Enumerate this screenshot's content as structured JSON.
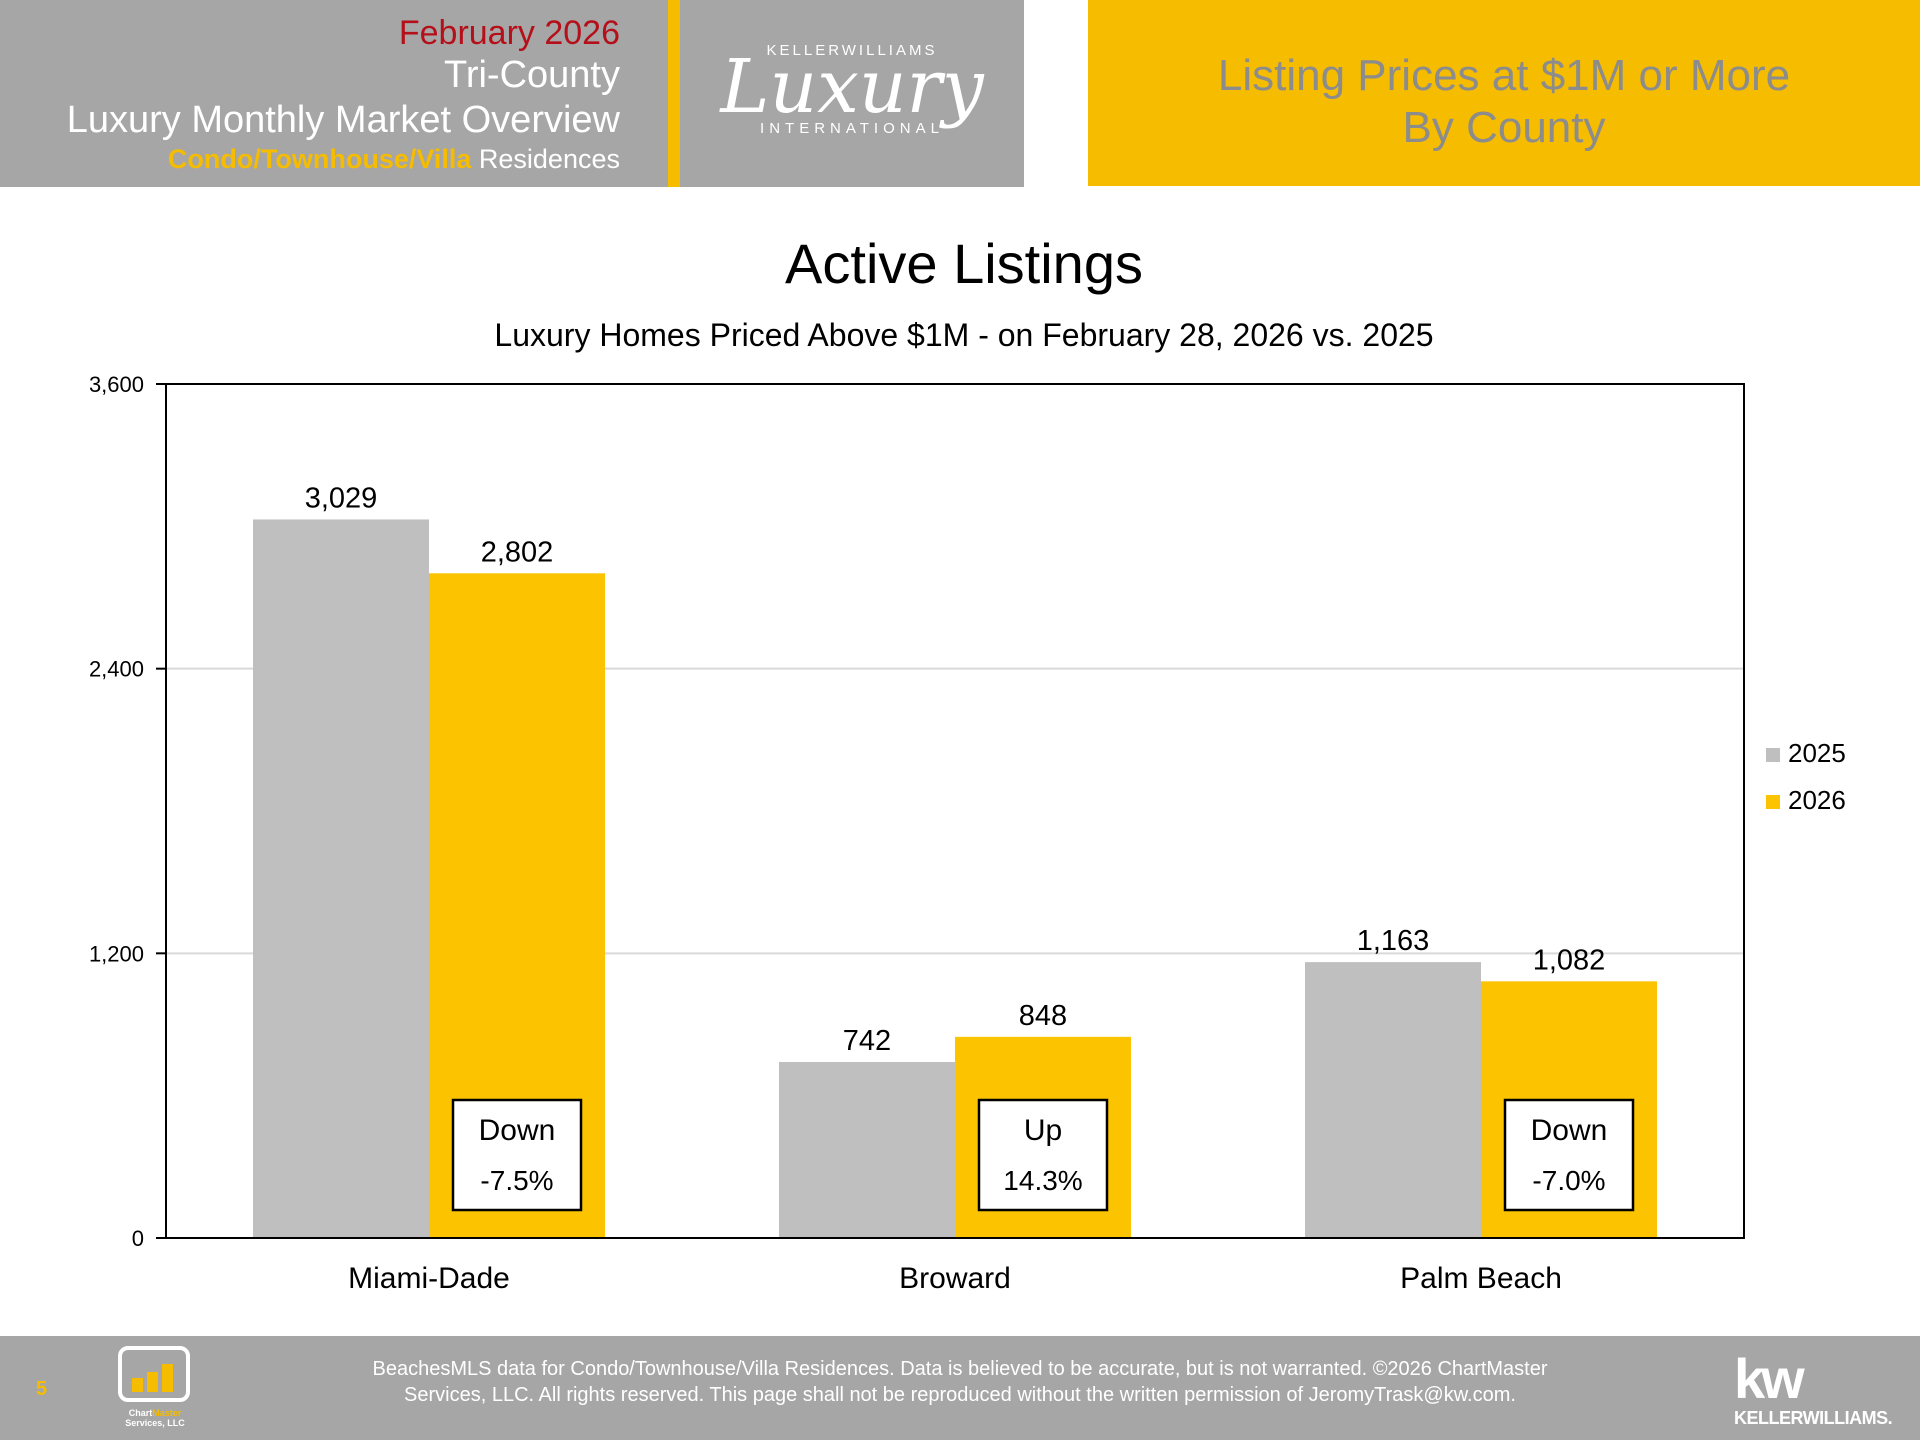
{
  "header": {
    "month": "February 2026",
    "region": "Tri-County",
    "overview": "Luxury Monthly Market Overview",
    "type_highlight": "Condo/Townhouse/Villa",
    "type_rest": " Residences",
    "logo_top": "KELLERWILLIAMS",
    "logo_script": "Luxury",
    "logo_bottom": "INTERNATIONAL",
    "right_title_line1": "Listing Prices at $1M or More",
    "right_title_line2": "By County"
  },
  "chart_data": {
    "type": "bar",
    "title": "Active Listings",
    "subtitle": "Luxury Homes Priced Above $1M - on February 28,  2026 vs. 2025",
    "categories": [
      "Miami-Dade",
      "Broward",
      "Palm Beach"
    ],
    "series": [
      {
        "name": "2025",
        "values": [
          3029,
          742,
          1163
        ],
        "labels": [
          "3,029",
          "742",
          "1,163"
        ],
        "color": "#bfbfbf"
      },
      {
        "name": "2026",
        "values": [
          2802,
          848,
          1082
        ],
        "labels": [
          "2,802",
          "848",
          "1,082"
        ],
        "color": "#fcc400"
      }
    ],
    "ylim": [
      0,
      3600
    ],
    "yticks": [
      0,
      1200,
      2400,
      3600
    ],
    "ytick_labels": [
      "0",
      "1,200",
      "2,400",
      "3,600"
    ],
    "grid": true,
    "legend_position": "right",
    "annotations": [
      {
        "line1": "Down",
        "line2": "-7.5%"
      },
      {
        "line1": "Up",
        "line2": "14.3%"
      },
      {
        "line1": "Down",
        "line2": "-7.0%"
      }
    ]
  },
  "footer": {
    "page_number": "5",
    "chartmaster_line1a": "Chart",
    "chartmaster_line1b": "Master",
    "chartmaster_line2": "Services, LLC",
    "disclaimer_line1": "BeachesMLS data for Condo/Townhouse/Villa Residences.  Data is believed to be accurate, but is not warranted.   ©2026  ChartMaster",
    "disclaimer_line2": "Services, LLC.  All rights reserved. This page shall not be reproduced without the written permission of JeromyTrask@kw.com.",
    "kw_big": "kw",
    "kw_small": "KELLERWILLIAMS."
  },
  "colors": {
    "gold": "#f5bc00",
    "bar_2026": "#fcc400",
    "bar_2025": "#bfbfbf",
    "header_gray": "#a6a6a6",
    "month_red": "#b5101a"
  }
}
